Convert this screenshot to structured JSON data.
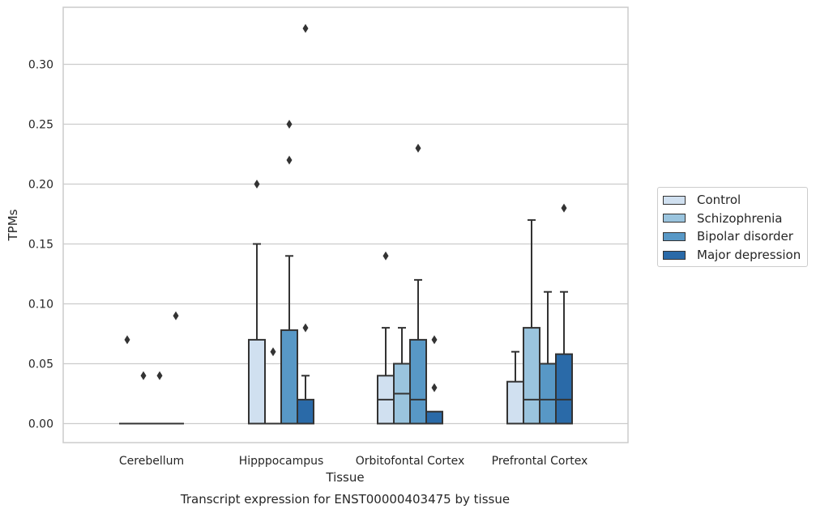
{
  "chart_data": {
    "type": "box",
    "title": "Transcript expression for ENST00000403475 by tissue",
    "xlabel": "Tissue",
    "ylabel": "TPMs",
    "ylim": [
      -0.016,
      0.345
    ],
    "yticks": [
      0.0,
      0.05,
      0.1,
      0.15,
      0.2,
      0.25,
      0.3
    ],
    "ytick_labels": [
      "0.00",
      "0.05",
      "0.10",
      "0.15",
      "0.20",
      "0.25",
      "0.30"
    ],
    "categories": [
      "Cerebellum",
      "Hipppocampus",
      "Orbitofontal Cortex",
      "Prefrontal Cortex"
    ],
    "grid": "horizontal",
    "legend_position": "right",
    "series": [
      {
        "name": "Control",
        "color": "#d0e0f0",
        "boxes": [
          {
            "q1": 0,
            "median": 0,
            "q3": 0,
            "whislo": 0,
            "whishi": 0,
            "fliers": [
              0.07
            ]
          },
          {
            "q1": 0,
            "median": 0,
            "q3": 0.07,
            "whislo": 0,
            "whishi": 0.15,
            "fliers": [
              0.2
            ]
          },
          {
            "q1": 0,
            "median": 0.02,
            "q3": 0.04,
            "whislo": 0,
            "whishi": 0.08,
            "fliers": [
              0.14
            ]
          },
          {
            "q1": 0,
            "median": 0,
            "q3": 0.035,
            "whislo": 0,
            "whishi": 0.06,
            "fliers": []
          }
        ]
      },
      {
        "name": "Schizophrenia",
        "color": "#9ac4de",
        "boxes": [
          {
            "q1": 0,
            "median": 0,
            "q3": 0,
            "whislo": 0,
            "whishi": 0,
            "fliers": [
              0.04
            ]
          },
          {
            "q1": 0,
            "median": 0,
            "q3": 0,
            "whislo": 0,
            "whishi": 0,
            "fliers": [
              0.06
            ]
          },
          {
            "q1": 0,
            "median": 0.025,
            "q3": 0.05,
            "whislo": 0,
            "whishi": 0.08,
            "fliers": []
          },
          {
            "q1": 0,
            "median": 0.02,
            "q3": 0.08,
            "whislo": 0,
            "whishi": 0.17,
            "fliers": []
          }
        ]
      },
      {
        "name": "Bipolar disorder",
        "color": "#5898c6",
        "boxes": [
          {
            "q1": 0,
            "median": 0,
            "q3": 0,
            "whislo": 0,
            "whishi": 0,
            "fliers": [
              0.04
            ]
          },
          {
            "q1": 0,
            "median": 0,
            "q3": 0.078,
            "whislo": 0,
            "whishi": 0.14,
            "fliers": [
              0.22,
              0.25
            ]
          },
          {
            "q1": 0,
            "median": 0.02,
            "q3": 0.07,
            "whislo": 0,
            "whishi": 0.12,
            "fliers": [
              0.23
            ]
          },
          {
            "q1": 0,
            "median": 0.02,
            "q3": 0.05,
            "whislo": 0,
            "whishi": 0.11,
            "fliers": []
          }
        ]
      },
      {
        "name": "Major depression",
        "color": "#2a6aa8",
        "boxes": [
          {
            "q1": 0,
            "median": 0,
            "q3": 0,
            "whislo": 0,
            "whishi": 0,
            "fliers": [
              0.09
            ]
          },
          {
            "q1": 0,
            "median": 0,
            "q3": 0.02,
            "whislo": 0,
            "whishi": 0.04,
            "fliers": [
              0.08,
              0.33
            ]
          },
          {
            "q1": 0,
            "median": 0,
            "q3": 0.01,
            "whislo": 0,
            "whishi": 0.01,
            "fliers": [
              0.03,
              0.07
            ]
          },
          {
            "q1": 0,
            "median": 0.02,
            "q3": 0.058,
            "whislo": 0,
            "whishi": 0.11,
            "fliers": [
              0.18
            ]
          }
        ]
      }
    ]
  }
}
